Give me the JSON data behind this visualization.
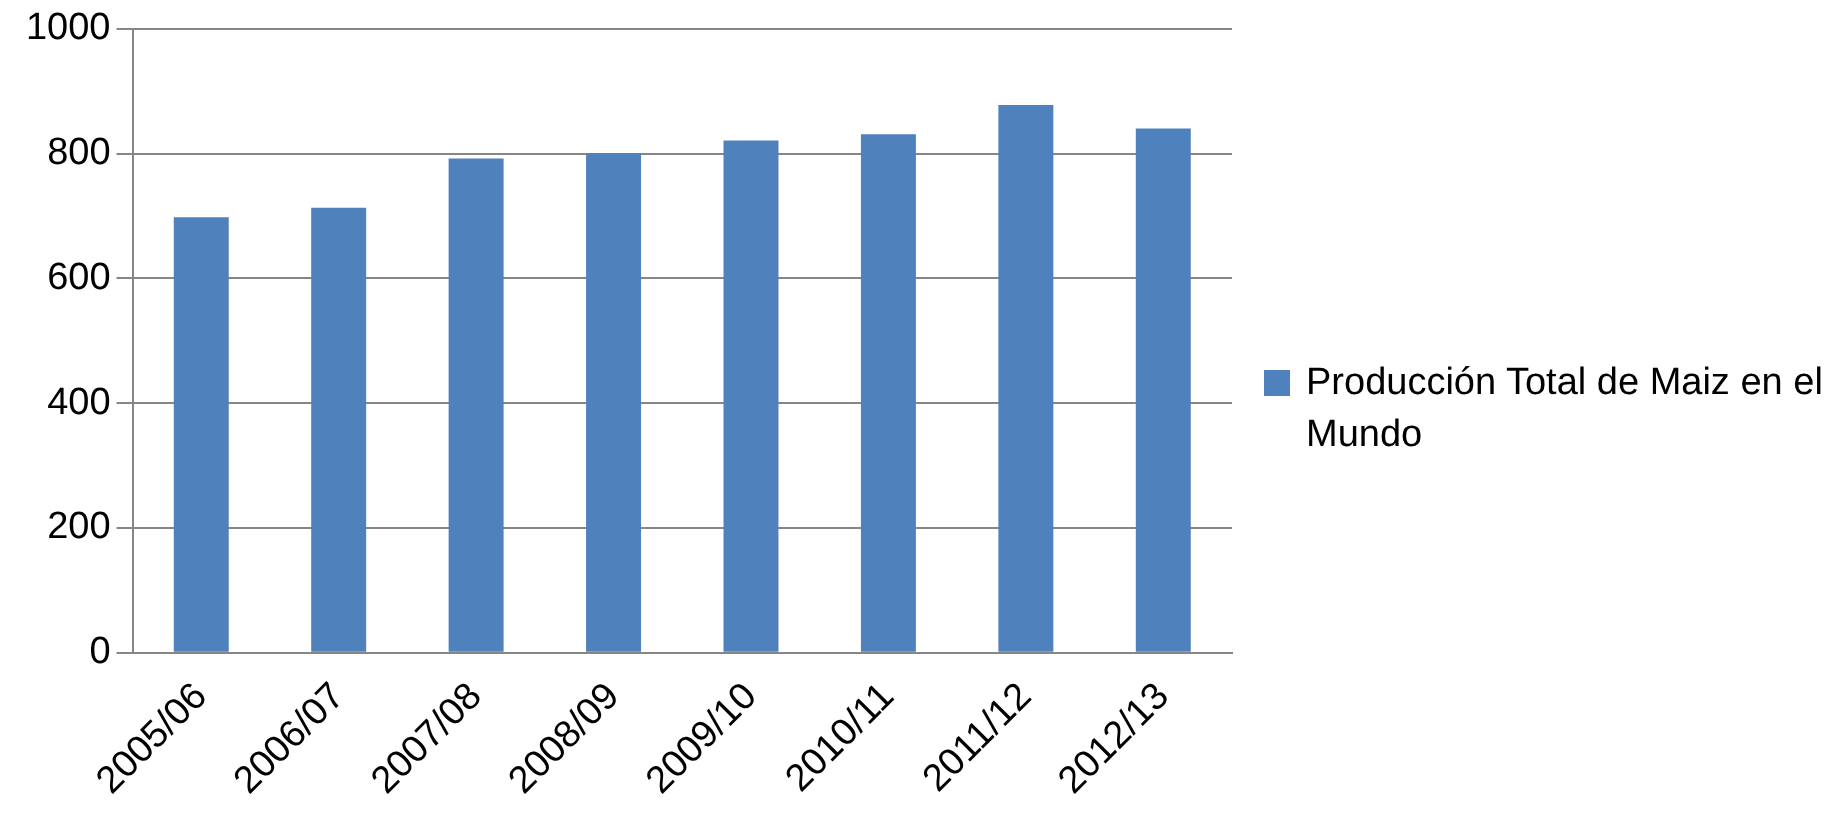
{
  "chart_data": {
    "type": "bar",
    "categories": [
      "2005/06",
      "2006/07",
      "2007/08",
      "2008/09",
      "2009/10",
      "2010/11",
      "2011/12",
      "2012/13"
    ],
    "series": [
      {
        "name": "Producción Total de Maiz en el Mundo",
        "color": "#4f81bd",
        "values": [
          698,
          713,
          792,
          801,
          821,
          831,
          878,
          840
        ]
      }
    ],
    "ylim": [
      0,
      1000
    ],
    "yticks": [
      0,
      200,
      400,
      600,
      800,
      1000
    ],
    "grid": "y",
    "legend": "right"
  }
}
